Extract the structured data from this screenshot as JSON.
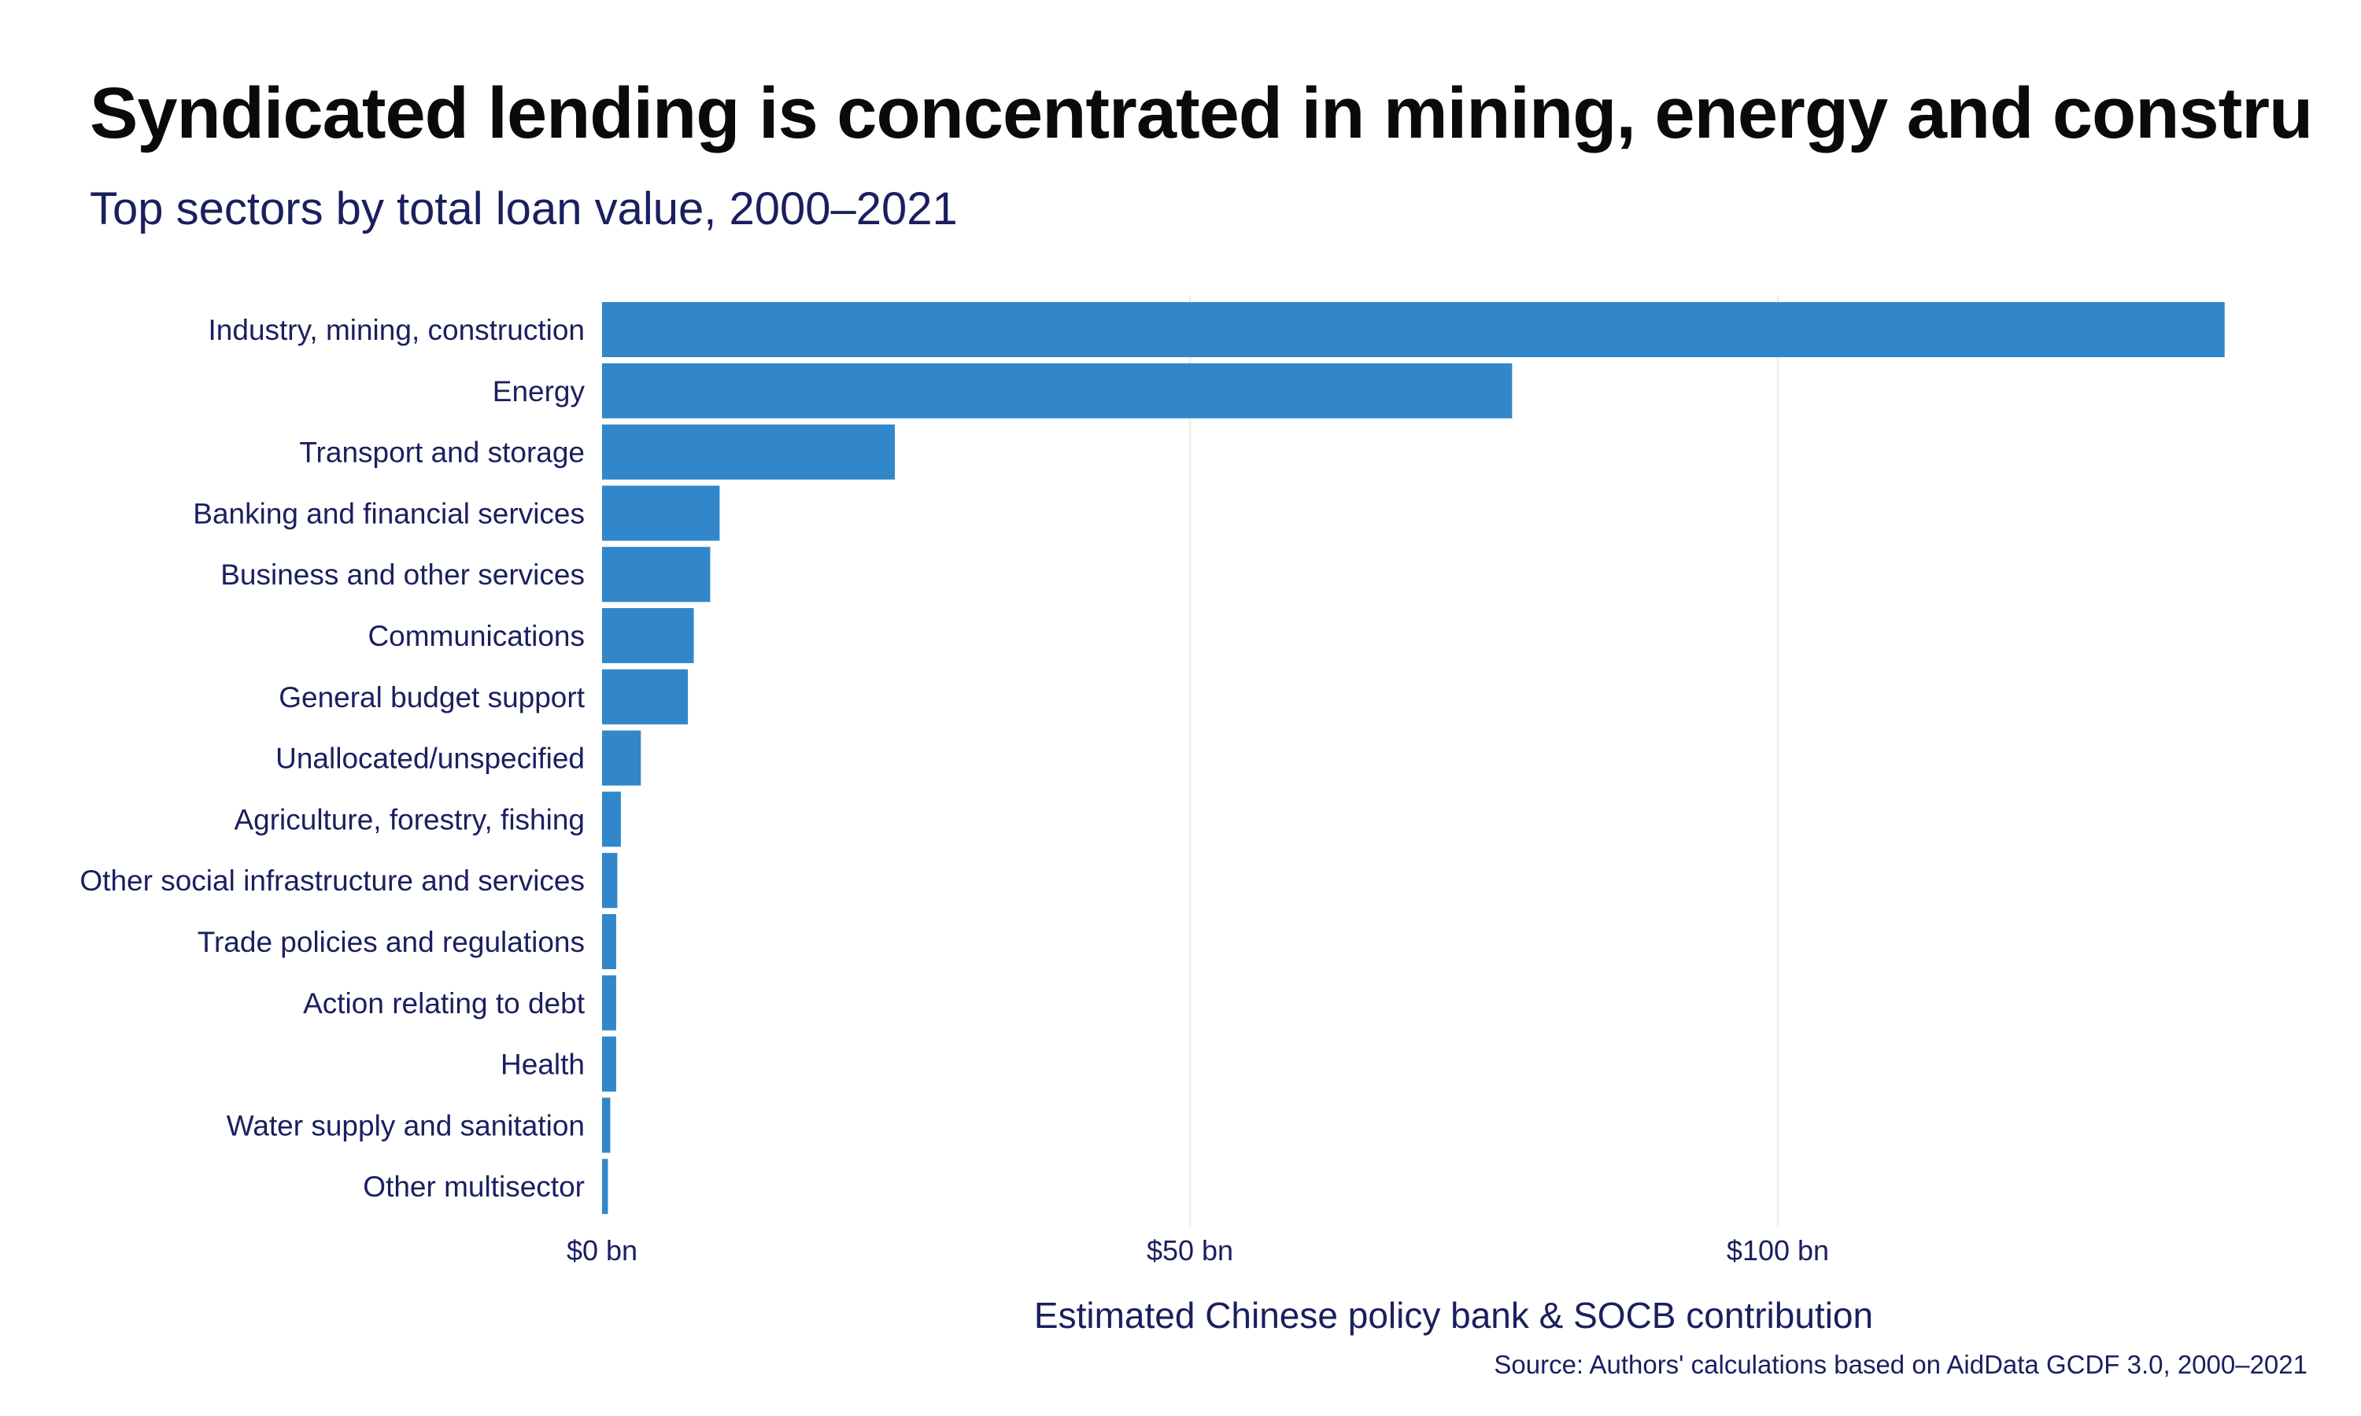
{
  "chart_data": {
    "type": "bar",
    "orientation": "horizontal",
    "title": "Syndicated lending is concentrated in mining, energy and constru",
    "subtitle": "Top sectors by total loan value, 2000–2021",
    "xlabel": "Estimated Chinese policy bank & SOCB contribution",
    "ylabel": "",
    "source": "Source: Authors' calculations based on AidData GCDF 3.0, 2000–2021",
    "xlim": [
      0,
      140
    ],
    "xticks": [
      {
        "value": 0,
        "label": "$0 bn"
      },
      {
        "value": 50,
        "label": "$50 bn"
      },
      {
        "value": 100,
        "label": "$100 bn"
      }
    ],
    "grid": "vertical major lines",
    "legend": "none",
    "categories": [
      "Industry, mining, construction",
      "Energy",
      "Transport and storage",
      "Banking and financial services",
      "Business and other services",
      "Communications",
      "General budget support",
      "Unallocated/unspecified",
      "Agriculture, forestry, fishing",
      "Other social infrastructure and services",
      "Trade policies and regulations",
      "Action relating to debt",
      "Health",
      "Water supply and sanitation",
      "Other multisector"
    ],
    "values": [
      138,
      77.4,
      24.9,
      10,
      9.2,
      7.8,
      7.3,
      3.3,
      1.6,
      1.3,
      1.2,
      1.2,
      1.2,
      0.7,
      0.5
    ],
    "colors": {
      "bar": "#3187c9",
      "text": "#1a1f5e",
      "title": "#0a0a0a",
      "grid": "#f4efe2"
    }
  }
}
